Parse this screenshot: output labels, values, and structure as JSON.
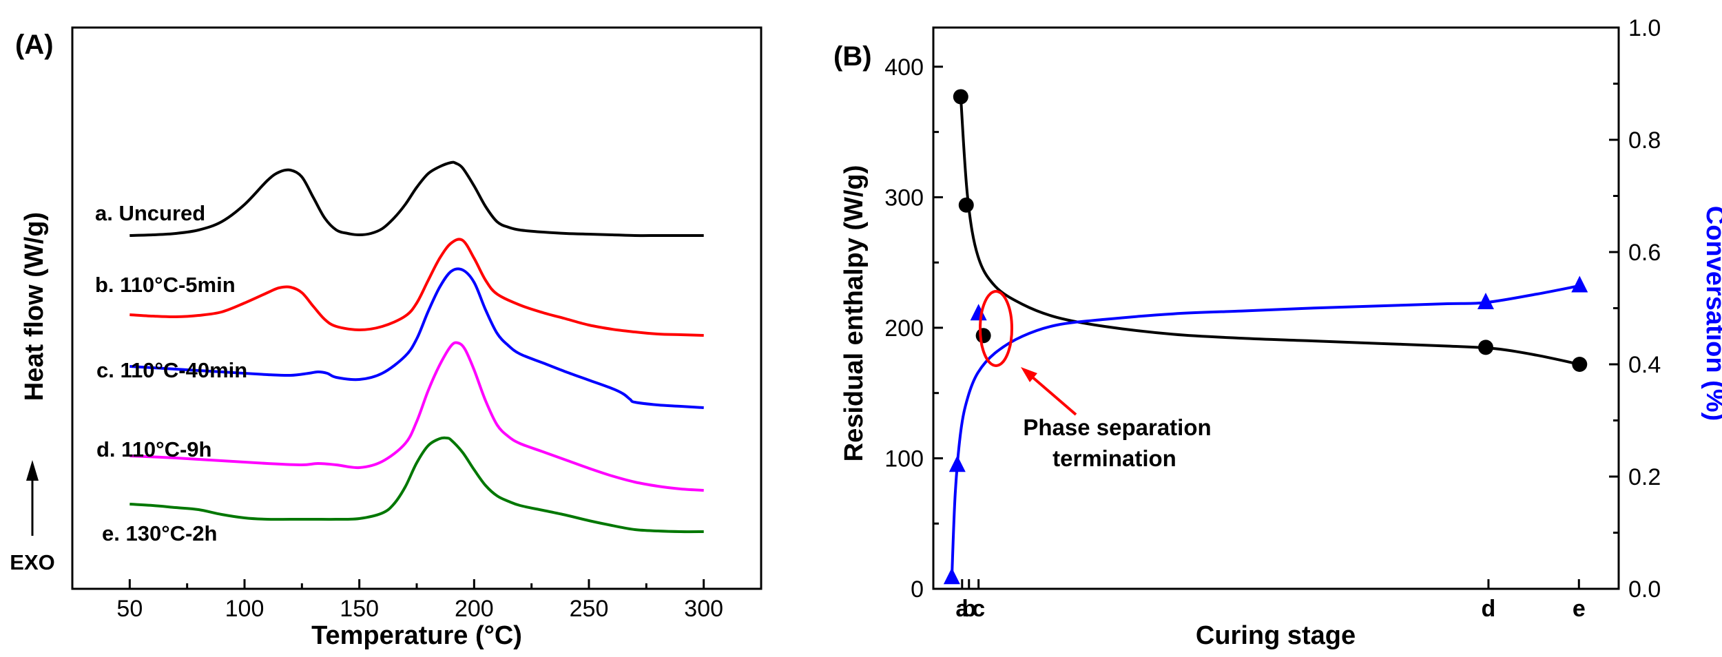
{
  "chart_data": [
    {
      "panel": "(A)",
      "type": "line",
      "title": "",
      "xlabel": "Temperature (°C)",
      "ylabel": "Heat flow (W/g)",
      "xlim": [
        25,
        325
      ],
      "xticks": [
        50,
        100,
        150,
        200,
        250,
        300
      ],
      "yticks": "none",
      "exo_label": "EXO",
      "series": [
        {
          "name": "a. Uncured",
          "color": "#000000",
          "offset": 430,
          "x": [
            50,
            60,
            70,
            80,
            90,
            100,
            110,
            115,
            120,
            125,
            130,
            135,
            140,
            145,
            150,
            155,
            160,
            165,
            170,
            175,
            180,
            185,
            190,
            192,
            195,
            200,
            205,
            210,
            215,
            220,
            230,
            240,
            250,
            260,
            270,
            280,
            290,
            300
          ],
          "y": [
            0,
            1,
            3,
            8,
            20,
            45,
            80,
            92,
            95,
            85,
            55,
            25,
            8,
            3,
            1,
            3,
            10,
            25,
            45,
            70,
            90,
            100,
            106,
            105,
            98,
            72,
            42,
            20,
            12,
            8,
            5,
            3,
            2,
            1,
            0,
            0,
            0,
            0
          ]
        },
        {
          "name": "b. 110°C-5min",
          "subscript": "5min",
          "color": "#ff0000",
          "offset": 285,
          "x": [
            50,
            60,
            70,
            80,
            90,
            100,
            110,
            115,
            120,
            125,
            130,
            135,
            140,
            150,
            160,
            170,
            175,
            180,
            185,
            190,
            195,
            200,
            205,
            210,
            220,
            230,
            240,
            250,
            260,
            270,
            280,
            290,
            300
          ],
          "y": [
            30,
            28,
            27,
            29,
            34,
            47,
            62,
            69,
            70,
            62,
            42,
            23,
            13,
            8,
            13,
            28,
            47,
            80,
            112,
            134,
            138,
            112,
            80,
            60,
            44,
            33,
            24,
            15,
            9,
            5,
            2,
            1,
            0
          ]
        },
        {
          "name": "c. 110°C-40min",
          "color": "#0000ff",
          "offset": 180,
          "x": [
            50,
            70,
            90,
            110,
            120,
            128,
            132,
            136,
            140,
            150,
            160,
            170,
            175,
            180,
            185,
            190,
            195,
            200,
            205,
            210,
            215,
            220,
            230,
            240,
            250,
            260,
            265,
            268,
            270,
            280,
            290,
            300
          ],
          "y": [
            60,
            56,
            52,
            48,
            47,
            50,
            52,
            50,
            44,
            41,
            50,
            75,
            100,
            140,
            175,
            198,
            200,
            182,
            142,
            108,
            90,
            78,
            65,
            52,
            40,
            28,
            20,
            12,
            8,
            4,
            2,
            0
          ]
        },
        {
          "name": "d. 110°C-9h",
          "color": "#ff00ff",
          "offset": 60,
          "x": [
            50,
            70,
            90,
            110,
            125,
            132,
            140,
            150,
            160,
            170,
            175,
            180,
            185,
            190,
            193,
            196,
            200,
            205,
            210,
            215,
            220,
            230,
            240,
            250,
            260,
            270,
            280,
            290,
            300
          ],
          "y": [
            50,
            47,
            43,
            39,
            37,
            39,
            37,
            33,
            42,
            68,
            100,
            145,
            182,
            210,
            214,
            205,
            175,
            130,
            95,
            78,
            68,
            56,
            44,
            32,
            21,
            12,
            6,
            2,
            0
          ]
        },
        {
          "name": "e. 130°C-2h",
          "color": "#007700",
          "offset": 0,
          "x": [
            50,
            60,
            70,
            80,
            90,
            100,
            110,
            120,
            130,
            140,
            150,
            160,
            165,
            170,
            175,
            180,
            185,
            188,
            190,
            195,
            200,
            205,
            210,
            215,
            220,
            230,
            240,
            250,
            260,
            270,
            280,
            290,
            300
          ],
          "y": [
            40,
            38,
            35,
            32,
            25,
            20,
            18,
            18,
            18,
            18,
            19,
            27,
            40,
            65,
            100,
            125,
            135,
            136,
            133,
            115,
            90,
            67,
            52,
            44,
            38,
            31,
            24,
            16,
            9,
            3,
            1,
            0,
            0
          ]
        }
      ]
    },
    {
      "panel": "(B)",
      "type": "scatter",
      "title": "",
      "xlabel": "Curing stage",
      "ylabel_left": "Residual enthalpy (W/g)",
      "ylabel_right": "Conversation (%)",
      "ylim_left": [
        0,
        430
      ],
      "yticks_left": [
        0,
        100,
        200,
        300,
        400
      ],
      "ylim_right": [
        0,
        1.0
      ],
      "yticks_right": [
        "0.0",
        "0.2",
        "0.4",
        "0.6",
        "0.8",
        "1.0"
      ],
      "xlim": [
        0,
        10
      ],
      "categories": [
        {
          "label": "a",
          "x": 0.42
        },
        {
          "label": "b",
          "x": 0.52
        },
        {
          "label": "c",
          "x": 0.66
        },
        {
          "label": "d",
          "x": 8.1
        },
        {
          "label": "e",
          "x": 9.42
        }
      ],
      "series": [
        {
          "name": "Residual enthalpy",
          "axis": "left",
          "color": "#000000",
          "marker": "circle",
          "points": [
            {
              "x": 0.4,
              "y": 377
            },
            {
              "x": 0.48,
              "y": 294
            },
            {
              "x": 0.73,
              "y": 194
            },
            {
              "x": 8.06,
              "y": 185
            },
            {
              "x": 9.43,
              "y": 172
            }
          ],
          "fit": {
            "x": [
              0.4,
              0.5,
              0.65,
              0.9,
              1.3,
              1.8,
              2.5,
              3.5,
              4.5,
              5.5,
              6.5,
              7.5,
              8.2,
              8.8,
              9.43
            ],
            "y": [
              377,
              300,
              255,
              232,
              218,
              208,
              201,
              195,
              192,
              190,
              188,
              186,
              184,
              179,
              172
            ]
          }
        },
        {
          "name": "Conversion",
          "axis": "right",
          "color": "#0000ff",
          "marker": "triangle",
          "points": [
            {
              "x": 0.27,
              "y": 0.02
            },
            {
              "x": 0.35,
              "y": 0.22
            },
            {
              "x": 0.66,
              "y": 0.49
            },
            {
              "x": 8.06,
              "y": 0.51
            },
            {
              "x": 9.43,
              "y": 0.54
            }
          ],
          "fit": {
            "x": [
              0.27,
              0.32,
              0.4,
              0.5,
              0.65,
              0.9,
              1.3,
              1.8,
              2.5,
              3.5,
              4.5,
              5.5,
              6.5,
              7.5,
              8.06,
              8.8,
              9.43
            ],
            "y": [
              0.02,
              0.17,
              0.28,
              0.34,
              0.385,
              0.42,
              0.45,
              0.47,
              0.48,
              0.49,
              0.495,
              0.5,
              0.504,
              0.508,
              0.51,
              0.525,
              0.54
            ]
          }
        }
      ],
      "annotation": {
        "line1": "Phase separation",
        "line2": "termination",
        "color": "#ff0000"
      }
    }
  ],
  "colors": {
    "axis": "#000000",
    "accent_red": "#ff0000",
    "accent_blue": "#0000ff"
  }
}
